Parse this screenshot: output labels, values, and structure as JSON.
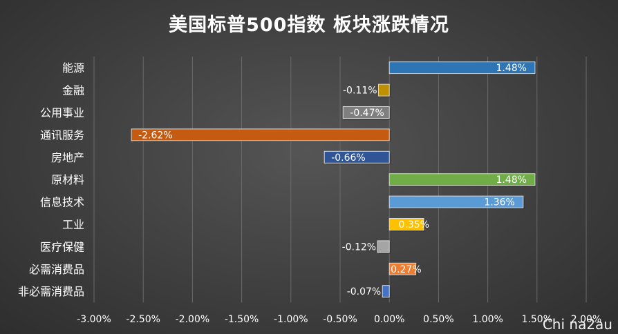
{
  "chart_data": {
    "type": "bar",
    "orientation": "horizontal",
    "title": "美国标普500指数 板块涨跌情况",
    "categories": [
      "能源",
      "金融",
      "公用事业",
      "通讯服务",
      "房地产",
      "原材料",
      "信息技术",
      "工业",
      "医疗保健",
      "必需消费品",
      "非必需消费品"
    ],
    "values": [
      1.48,
      -0.11,
      -0.47,
      -2.62,
      -0.66,
      1.48,
      1.36,
      0.35,
      -0.12,
      0.27,
      -0.07
    ],
    "data_labels": [
      "1.48%",
      "-0.11%",
      "-0.47%",
      "-2.62%",
      "-0.66%",
      "1.48%",
      "1.36%",
      "0.35%",
      "-0.12%",
      "0.27%",
      "-0.07%"
    ],
    "bar_colors": [
      "#2e75b6",
      "#bf9000",
      "#7f7f7f",
      "#c55a11",
      "#2f5597",
      "#70ad47",
      "#5b9bd5",
      "#ffc000",
      "#a5a5a5",
      "#ed7d31",
      "#4472c4"
    ],
    "xlim": [
      -3.0,
      2.0
    ],
    "xticks": [
      -3.0,
      -2.5,
      -2.0,
      -1.5,
      -1.0,
      -0.5,
      0.0,
      0.5,
      1.0,
      1.5,
      2.0
    ],
    "xtick_labels": [
      "-3.00%",
      "-2.50%",
      "-2.00%",
      "-1.50%",
      "-1.00%",
      "-0.50%",
      "0.00%",
      "0.50%",
      "1.00%",
      "1.50%",
      "2.00%"
    ],
    "grid": true
  },
  "watermark": "Chi na2au"
}
